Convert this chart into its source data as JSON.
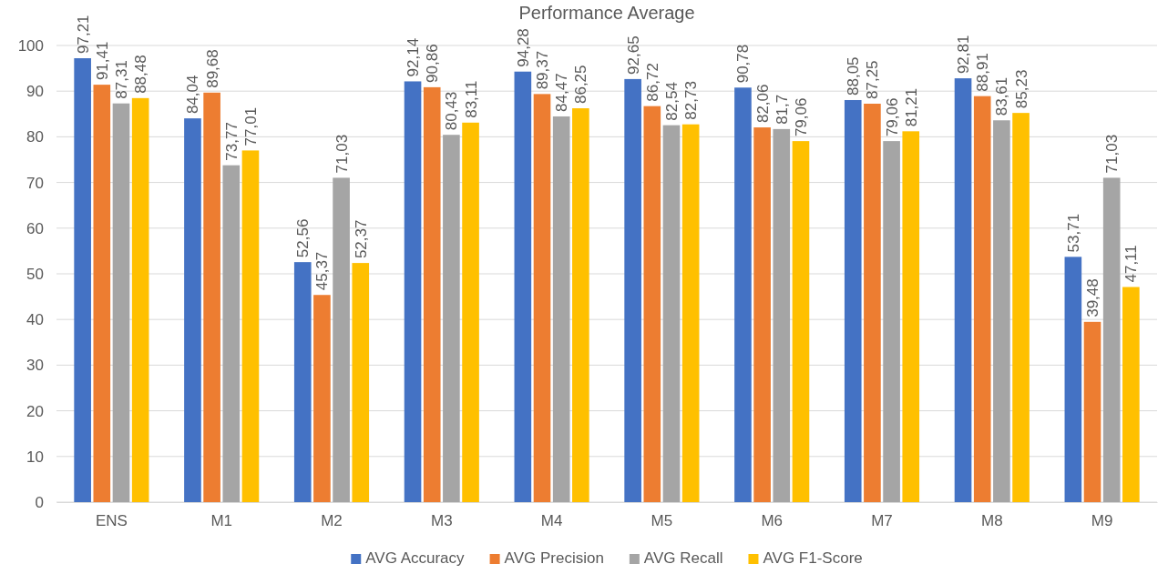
{
  "chart_data": {
    "type": "bar",
    "title": "Performance Average",
    "categories": [
      "ENS",
      "M1",
      "M2",
      "M3",
      "M4",
      "M5",
      "M6",
      "M7",
      "M8",
      "M9"
    ],
    "series": [
      {
        "name": "AVG Accuracy",
        "color": "#4472c4",
        "values": [
          97.21,
          84.04,
          52.56,
          92.14,
          94.28,
          92.65,
          90.78,
          88.05,
          92.81,
          53.71
        ],
        "value_labels": [
          "97,21",
          "84,04",
          "52,56",
          "92,14",
          "94,28",
          "92,65",
          "90,78",
          "88,05",
          "92,81",
          "53,71"
        ]
      },
      {
        "name": "AVG Precision",
        "color": "#ed7d31",
        "values": [
          91.41,
          89.68,
          45.37,
          90.86,
          89.37,
          86.72,
          82.06,
          87.25,
          88.91,
          39.48
        ],
        "value_labels": [
          "91,41",
          "89,68",
          "45,37",
          "90,86",
          "89,37",
          "86,72",
          "82,06",
          "87,25",
          "88,91",
          "39,48"
        ]
      },
      {
        "name": "AVG Recall",
        "color": "#a5a5a5",
        "values": [
          87.31,
          73.77,
          71.03,
          80.43,
          84.47,
          82.54,
          81.7,
          79.06,
          83.61,
          71.03
        ],
        "value_labels": [
          "87,31",
          "73,77",
          "71,03",
          "80,43",
          "84,47",
          "82,54",
          "81,7",
          "79,06",
          "83,61",
          "71,03"
        ]
      },
      {
        "name": "AVG F1-Score",
        "color": "#ffc000",
        "values": [
          88.48,
          77.01,
          52.37,
          83.11,
          86.25,
          82.73,
          79.06,
          81.21,
          85.23,
          47.11
        ],
        "value_labels": [
          "88,48",
          "77,01",
          "52,37",
          "83,11",
          "86,25",
          "82,73",
          "79,06",
          "81,21",
          "85,23",
          "47,11"
        ]
      }
    ],
    "ylim": [
      0,
      100
    ],
    "yticks": [
      0,
      10,
      20,
      30,
      40,
      50,
      60,
      70,
      80,
      90,
      100
    ],
    "grid": "y",
    "legend": "bottom"
  }
}
